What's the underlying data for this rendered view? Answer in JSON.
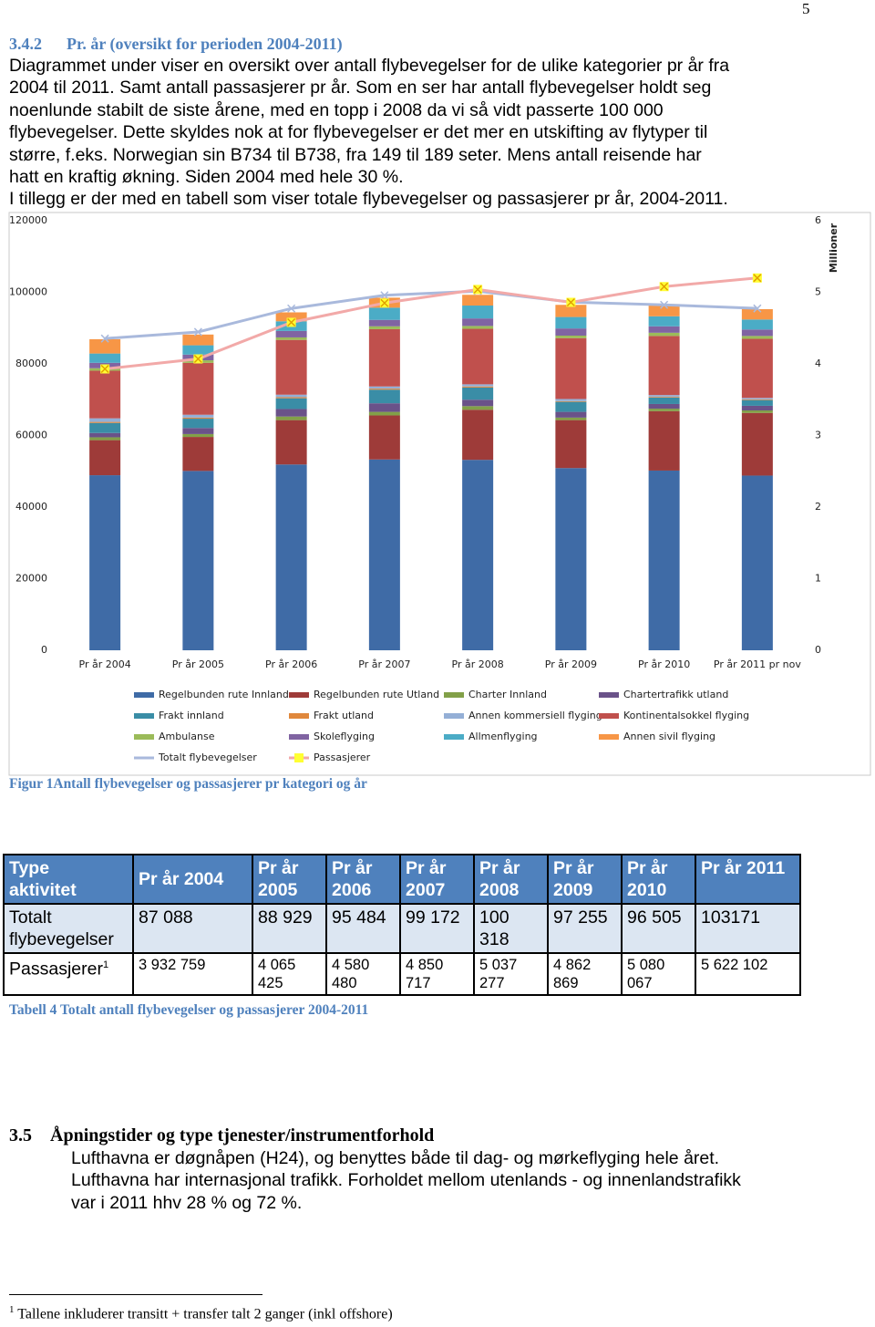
{
  "page_number": "5",
  "section": {
    "number": "3.4.2",
    "title": "Pr. år (oversikt for perioden 2004-2011)",
    "lines": [
      "Diagrammet under viser en oversikt over antall flybevegelser for de ulike kategorier pr år fra",
      "2004 til 2011. Samt antall passasjerer pr år. Som en ser har antall flybevegelser holdt seg",
      "noenlunde stabilt de siste årene, med en topp i 2008 da vi så vidt passerte 100 000",
      "flybevegelser. Dette skyldes nok at for flybevegelser er det mer en utskifting av flytyper til",
      "større, f.eks. Norwegian sin B734 til B738, fra 149 til 189 seter.  Mens antall reisende har",
      "hatt en kraftig økning. Siden 2004 med hele 30 %.",
      "I tillegg er der med en tabell som viser totale flybevegelser og passasjerer pr år, 2004-2011."
    ]
  },
  "chart_data": {
    "type": "bar",
    "stacked": true,
    "categories": [
      "Pr år 2004",
      "Pr år 2005",
      "Pr år 2006",
      "Pr år 2007",
      "Pr år 2008",
      "Pr år 2009",
      "Pr år 2010",
      "Pr år 2011 pr nov"
    ],
    "ylim": [
      0,
      120000
    ],
    "yticks": [
      0,
      20000,
      40000,
      60000,
      80000,
      100000,
      120000
    ],
    "y2lim": [
      0,
      6
    ],
    "y2ticks": [
      0,
      1,
      2,
      3,
      4,
      5,
      6
    ],
    "y2label": "Millioner",
    "grid": false,
    "legend": "bottom",
    "series": [
      {
        "name": "Regelbunden rute Innland",
        "color": "#3f6ba6",
        "values": [
          48900,
          50100,
          51900,
          53300,
          53200,
          50900,
          50200,
          48800
        ]
      },
      {
        "name": "Regelbunden rute Utland",
        "color": "#9e3b39",
        "values": [
          9800,
          9500,
          12400,
          12300,
          14000,
          13400,
          16600,
          17500
        ]
      },
      {
        "name": "Charter Innland",
        "color": "#82a048",
        "values": [
          800,
          800,
          1000,
          1000,
          1000,
          700,
          700,
          700
        ]
      },
      {
        "name": "Chartertrafikk utland",
        "color": "#6a5289",
        "values": [
          1200,
          1700,
          2100,
          2400,
          1800,
          1600,
          1300,
          1300
        ]
      },
      {
        "name": "Frakt innland",
        "color": "#3a8da6",
        "values": [
          2800,
          2600,
          3000,
          3800,
          3400,
          2800,
          1800,
          1600
        ]
      },
      {
        "name": "Frakt utland",
        "color": "#e0883c",
        "values": [
          300,
          300,
          300,
          300,
          300,
          200,
          200,
          200
        ]
      },
      {
        "name": "Annen kommersiell flyging",
        "color": "#94afd6",
        "values": [
          1000,
          800,
          700,
          600,
          600,
          600,
          500,
          400
        ]
      },
      {
        "name": "Kontinentalsokkel flyging",
        "color": "#c0504d",
        "values": [
          13300,
          14500,
          15300,
          16000,
          15500,
          17000,
          16500,
          16500
        ]
      },
      {
        "name": "Ambulanse",
        "color": "#9bbb59",
        "values": [
          700,
          700,
          700,
          800,
          800,
          700,
          900,
          800
        ]
      },
      {
        "name": "Skoleflyging",
        "color": "#8064a2",
        "values": [
          1500,
          1600,
          1800,
          1800,
          2100,
          2000,
          1800,
          1800
        ]
      },
      {
        "name": "Allmenflyging",
        "color": "#4bacc6",
        "values": [
          2600,
          2600,
          2700,
          3400,
          3600,
          3200,
          2800,
          2800
        ]
      },
      {
        "name": "Annen sivil flyging",
        "color": "#f79646",
        "values": [
          4000,
          3000,
          2500,
          2800,
          3000,
          3400,
          3400,
          2900
        ]
      },
      {
        "name": "Totalt flybevegelser",
        "type": "line",
        "color": "#a9b9dc",
        "values": [
          87088,
          88929,
          95484,
          99172,
          100318,
          97255,
          96505,
          95500
        ]
      },
      {
        "name": "Passasjerer",
        "type": "line",
        "axis": "y2",
        "color": "#f2a9a8",
        "marker_color": "#ffff33",
        "values": [
          3.93,
          4.07,
          4.58,
          4.85,
          5.04,
          4.86,
          5.08,
          5.2
        ]
      }
    ]
  },
  "figure_caption": "Figur 1Antall flybevegelser og passasjerer pr kategori og år",
  "table": {
    "header": [
      "Type aktivitet",
      "Pr år 2004",
      "Pr år 2005",
      "Pr år 2006",
      "Pr år 2007",
      "Pr år 2008",
      "Pr år 2009",
      "Pr år 2010",
      "Pr år 2011"
    ],
    "rows": [
      [
        "Totalt flybevegelser",
        "87 088",
        "88 929",
        "95 484",
        "99 172",
        "100 318",
        "97 255",
        "96 505",
        "103171"
      ],
      [
        "Passasjerer",
        "3 932 759",
        "4 065 425",
        "4 580 480",
        "4 850 717",
        "5 037 277",
        "4 862 869",
        "5 080 067",
        "5 622 102"
      ]
    ],
    "footnote_ref": "1"
  },
  "table_caption": "Tabell 4 Totalt antall flybevegelser og passasjerer 2004-2011",
  "section2": {
    "number": "3.5",
    "title": "Åpningstider og type tjenester/instrumentforhold",
    "lines": [
      "Lufthavna er døgnåpen (H24), og benyttes både til dag- og mørkeflyging hele året.",
      "Lufthavna har internasjonal trafikk. Forholdet mellom utenlands - og innenlandstrafikk",
      "var i 2011 hhv 28 % og 72 %."
    ]
  },
  "footnote": {
    "number": "1",
    "text": "Tallene inkluderer transitt + transfer talt 2 ganger (inkl offshore)"
  }
}
